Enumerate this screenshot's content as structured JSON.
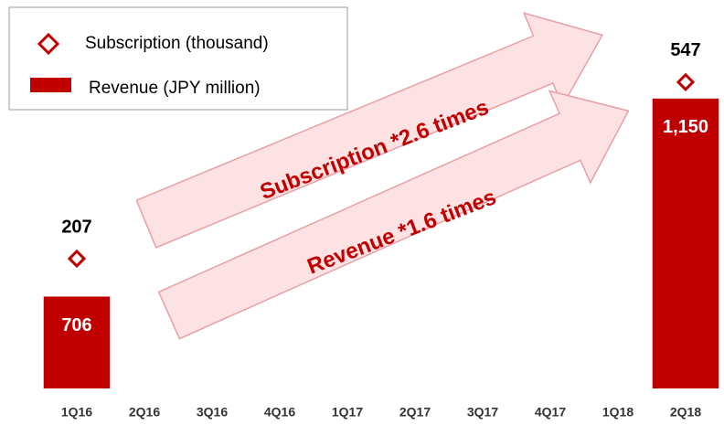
{
  "chart_data": {
    "type": "bar",
    "categories": [
      "1Q16",
      "2Q16",
      "3Q16",
      "4Q16",
      "1Q17",
      "2Q17",
      "3Q17",
      "4Q17",
      "1Q18",
      "2Q18"
    ],
    "series": [
      {
        "name": "Revenue (JPY million)",
        "color": "#c00000",
        "values": [
          706,
          null,
          null,
          null,
          null,
          null,
          null,
          null,
          null,
          1150
        ],
        "value_labels": [
          "706",
          null,
          null,
          null,
          null,
          null,
          null,
          null,
          null,
          "1,150"
        ]
      },
      {
        "name": "Subscription (thousand)",
        "color": "#c00000",
        "axis": "y2",
        "values": [
          207,
          null,
          null,
          null,
          null,
          null,
          null,
          null,
          null,
          547
        ]
      }
    ],
    "ylim": [
      500,
      1330
    ],
    "y2lim": [
      -43,
      670
    ],
    "annotations": [
      "Subscription *2.6  times",
      "Revenue *1.6 times"
    ]
  }
}
